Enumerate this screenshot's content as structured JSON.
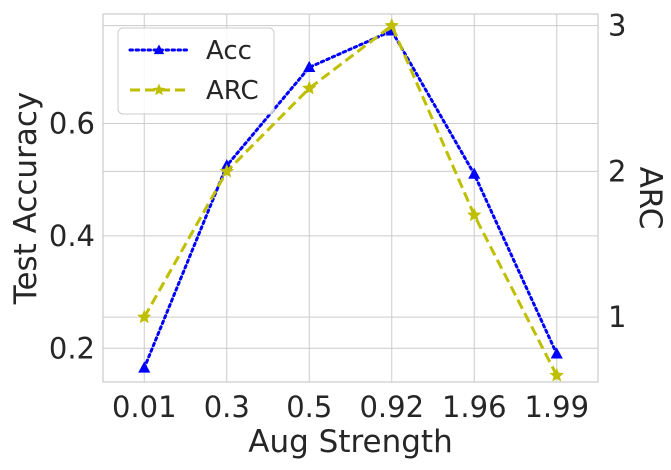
{
  "chart_data": {
    "type": "line",
    "categories": [
      "0.01",
      "0.3",
      "0.5",
      "0.92",
      "1.96",
      "1.99"
    ],
    "xlabel": "Aug Strength",
    "ylabel": "Test Accuracy",
    "y2label": "ARC",
    "ylim": [
      0.14,
      0.795
    ],
    "y2lim": [
      0.555,
      3.08
    ],
    "yticks": [
      0.2,
      0.4,
      0.6
    ],
    "y2ticks": [
      1,
      2,
      3
    ],
    "grid": true,
    "legend_position": "top-left",
    "series": [
      {
        "name": "Acc",
        "axis": "left",
        "color": "#0000ff",
        "line_style": "dotted",
        "marker": "triangle",
        "values": [
          0.165,
          0.525,
          0.7,
          0.765,
          0.51,
          0.19
        ]
      },
      {
        "name": "ARC",
        "axis": "right",
        "color": "#bfbf00",
        "line_style": "dashed",
        "marker": "star",
        "values": [
          1.0,
          2.0,
          2.57,
          3.0,
          1.7,
          0.6
        ]
      }
    ]
  }
}
